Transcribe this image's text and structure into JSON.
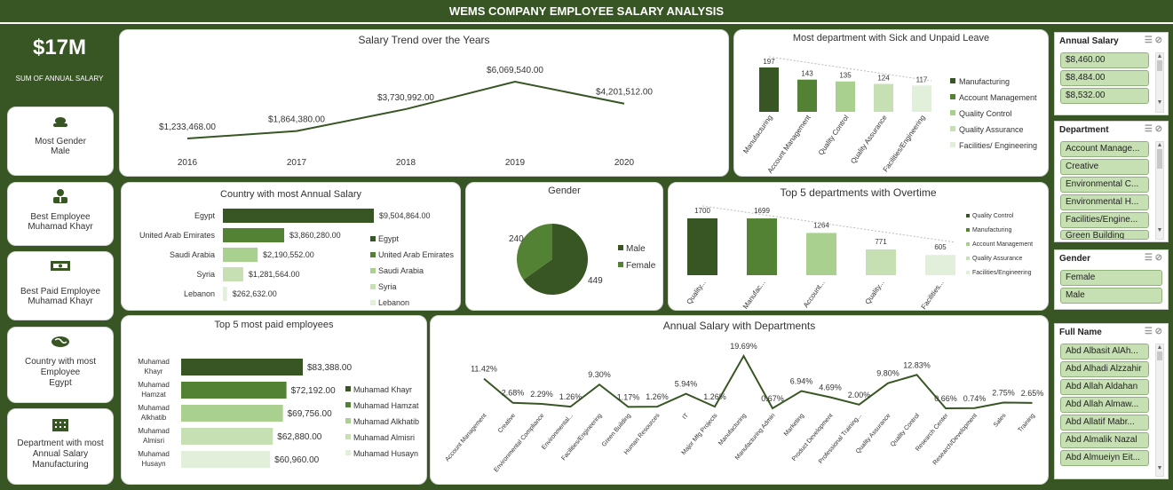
{
  "title": "WEMS COMPANY EMPLOYEE SALARY ANALYSIS",
  "kpi": {
    "value": "$17M",
    "label": "SUM OF ANNUAL SALARY"
  },
  "cards": [
    {
      "icon": "person-icon",
      "line1": "Most Gender",
      "line2": "Male"
    },
    {
      "icon": "employee-icon",
      "line1": "Best Employee",
      "line2": "Muhamad Khayr"
    },
    {
      "icon": "money-icon",
      "line1": "Best Paid Employee",
      "line2": "Muhamad Khayr"
    },
    {
      "icon": "globe-icon",
      "line1": "Country with most Employee",
      "line2": "Egypt"
    },
    {
      "icon": "building-icon",
      "line1": "Department with most Annual Salary",
      "line2": "Manufacturing"
    }
  ],
  "charts": {
    "trend": {
      "title": "Salary Trend over the Years",
      "type": "line",
      "x": [
        "2016",
        "2017",
        "2018",
        "2019",
        "2020"
      ],
      "values": [
        1233468,
        1864380,
        3730992,
        6069540,
        4201512
      ],
      "labels": [
        "$1,233,468.00",
        "$1,864,380.00",
        "$3,730,992.00",
        "$6,069,540.00",
        "$4,201,512.00"
      ]
    },
    "sick": {
      "title": "Most department with Sick and Unpaid Leave",
      "type": "bar",
      "categories": [
        "Manufacturing",
        "Account Management",
        "Quality Control",
        "Quality Assurance",
        "Facilities/Engineering"
      ],
      "values": [
        197,
        143,
        135,
        124,
        117
      ],
      "legend": [
        "Manufacturing",
        "Account Management",
        "Quality Control",
        "Quality Assurance",
        "Facilities/ Engineering"
      ]
    },
    "country": {
      "title": "Country with most Annual Salary",
      "type": "bar",
      "categories": [
        "Egypt",
        "United Arab Emirates",
        "Saudi Arabia",
        "Syria",
        "Lebanon"
      ],
      "values": [
        9504864,
        3860280,
        2190552,
        1281564,
        262632
      ],
      "labels": [
        "$9,504,864.00",
        "$3,860,280.00",
        "$2,190,552.00",
        "$1,281,564.00",
        "$262,632.00"
      ],
      "legend": [
        "Egypt",
        "United Arab Emirates",
        "Saudi Arabia",
        "Syria",
        "Lebanon"
      ]
    },
    "gender": {
      "title": "Gender",
      "type": "pie",
      "categories": [
        "Male",
        "Female"
      ],
      "values": [
        449,
        240
      ]
    },
    "overtime": {
      "title": "Top 5 departments with Overtime",
      "type": "bar",
      "categories": [
        "Quality...",
        "Manufac...",
        "Account...",
        "Quality...",
        "Facilities..."
      ],
      "values": [
        1700,
        1699,
        1264,
        771,
        605
      ],
      "legend": [
        "Quality Control",
        "Manufacturing",
        "Account Management",
        "Quality Assurance",
        "Facilities/Engineering"
      ]
    },
    "paid": {
      "title": "Top 5  most paid employees",
      "type": "bar",
      "categories": [
        "Muhamad Khayr",
        "Muhamad Hamzat",
        "Muhamad Alkhatib",
        "Muhamad Almisri",
        "Muhamad Husayn"
      ],
      "cat_lines": [
        [
          "Muhamad",
          "Khayr"
        ],
        [
          "Muhamad",
          "Hamzat"
        ],
        [
          "Muhamad",
          "Alkhatib"
        ],
        [
          "Muhamad",
          "Almisri"
        ],
        [
          "Muhamad",
          "Husayn"
        ]
      ],
      "values": [
        83388,
        72192,
        69756,
        62880,
        60960
      ],
      "labels": [
        "$83,388.00",
        "$72,192.00",
        "$69,756.00",
        "$62,880.00",
        "$60,960.00"
      ],
      "legend": [
        "Muhamad Khayr",
        "Muhamad Hamzat",
        "Muhamad Alkhatib",
        "Muhamad Almisri",
        "Muhamad Husayn"
      ]
    },
    "dept": {
      "title": "Annual Salary with Departments",
      "type": "line",
      "categories": [
        "Account Management",
        "Creative",
        "Environmental Compliance",
        "Environmental...",
        "Facilities/Engineering",
        "Green Building",
        "Human Resources",
        "IT",
        "Major Mfg Projects",
        "Manufacturing",
        "Manufacturing Admin",
        "Marketing",
        "Product Development",
        "Professional Training...",
        "Quality Assurance",
        "Quality Control",
        "Research Center",
        "Research/Development",
        "Sales",
        "Training"
      ],
      "values": [
        11.42,
        2.68,
        2.29,
        1.26,
        9.3,
        1.17,
        1.26,
        5.94,
        1.26,
        19.69,
        0.67,
        6.94,
        4.69,
        2.0,
        9.8,
        12.83,
        0.66,
        0.74,
        2.75,
        2.65
      ],
      "labels": [
        "11.42%",
        "2.68%",
        "2.29%",
        "1.26%",
        "9.30%",
        "1.17%",
        "1.26%",
        "5.94%",
        "1.26%",
        "19.69%",
        "0.67%",
        "6.94%",
        "4.69%",
        "2.00%",
        "9.80%",
        "12.83%",
        "0.66%",
        "0.74%",
        "2.75%",
        "2.65%"
      ]
    }
  },
  "slicers": {
    "annual": {
      "title": "Annual Salary",
      "items": [
        "$8,460.00",
        "$8,484.00",
        "$8,532.00"
      ]
    },
    "department": {
      "title": "Department",
      "items": [
        "Account Manage...",
        "Creative",
        "Environmental C...",
        "Environmental H...",
        "Facilities/Engine...",
        "Green Building"
      ]
    },
    "gender": {
      "title": "Gender",
      "items": [
        "Female",
        "Male"
      ]
    },
    "fullname": {
      "title": "Full Name",
      "items": [
        "Abd Albasit AlAh...",
        "Abd Alhadi Alzzahir",
        "Abd Allah Aldahan",
        "Abd Allah Almaw...",
        "Abd Allatif Mabr...",
        "Abd Almalik Nazal",
        "Abd Almueiyn Eit..."
      ]
    }
  },
  "colors": [
    "#375623",
    "#548235",
    "#a9d08e",
    "#c6e0b4",
    "#e2efda"
  ]
}
